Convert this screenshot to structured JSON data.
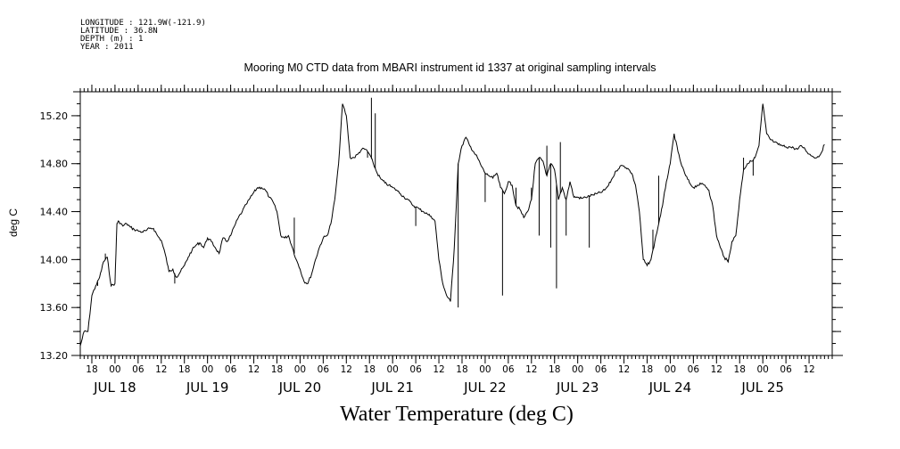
{
  "header": {
    "longitude": "LONGITUDE : 121.9W(-121.9)",
    "latitude": "LATITUDE : 36.8N",
    "depth": "DEPTH (m) : 1",
    "year": "YEAR : 2011"
  },
  "chart_data": {
    "type": "line",
    "title": "Mooring M0 CTD data from MBARI instrument id 1337 at original sampling intervals",
    "xlabel": "Water Temperature (deg C)",
    "ylabel": "deg C",
    "xlim": [
      "2011-07-17T15:00",
      "2011-07-25T18:00"
    ],
    "ylim": [
      13.2,
      15.4
    ],
    "yticks": [
      13.2,
      13.6,
      14.0,
      14.4,
      14.8,
      15.2
    ],
    "ytick_labels": [
      "13.20",
      "13.60",
      "14.00",
      "14.40",
      "14.80",
      "15.20"
    ],
    "xtick_labels": [
      {
        "t": "2011-07-17T18:00",
        "label": "18"
      },
      {
        "t": "2011-07-18T00:00",
        "label": "00"
      },
      {
        "t": "2011-07-18T06:00",
        "label": "06"
      },
      {
        "t": "2011-07-18T12:00",
        "label": "12"
      },
      {
        "t": "2011-07-18T18:00",
        "label": "18"
      },
      {
        "t": "2011-07-19T00:00",
        "label": "00"
      },
      {
        "t": "2011-07-19T06:00",
        "label": "06"
      },
      {
        "t": "2011-07-19T12:00",
        "label": "12"
      },
      {
        "t": "2011-07-19T18:00",
        "label": "18"
      },
      {
        "t": "2011-07-20T00:00",
        "label": "00"
      },
      {
        "t": "2011-07-20T06:00",
        "label": "06"
      },
      {
        "t": "2011-07-20T12:00",
        "label": "12"
      },
      {
        "t": "2011-07-20T18:00",
        "label": "18"
      },
      {
        "t": "2011-07-21T00:00",
        "label": "00"
      },
      {
        "t": "2011-07-21T06:00",
        "label": "06"
      },
      {
        "t": "2011-07-21T12:00",
        "label": "12"
      },
      {
        "t": "2011-07-21T18:00",
        "label": "18"
      },
      {
        "t": "2011-07-22T00:00",
        "label": "00"
      },
      {
        "t": "2011-07-22T06:00",
        "label": "06"
      },
      {
        "t": "2011-07-22T12:00",
        "label": "12"
      },
      {
        "t": "2011-07-22T18:00",
        "label": "18"
      },
      {
        "t": "2011-07-23T00:00",
        "label": "00"
      },
      {
        "t": "2011-07-23T06:00",
        "label": "06"
      },
      {
        "t": "2011-07-23T12:00",
        "label": "12"
      },
      {
        "t": "2011-07-23T18:00",
        "label": "18"
      },
      {
        "t": "2011-07-24T00:00",
        "label": "00"
      },
      {
        "t": "2011-07-24T06:00",
        "label": "06"
      },
      {
        "t": "2011-07-24T12:00",
        "label": "12"
      },
      {
        "t": "2011-07-24T18:00",
        "label": "18"
      },
      {
        "t": "2011-07-25T00:00",
        "label": "00"
      },
      {
        "t": "2011-07-25T06:00",
        "label": "06"
      },
      {
        "t": "2011-07-25T12:00",
        "label": "12"
      }
    ],
    "date_labels": [
      {
        "t": "2011-07-18T00:00",
        "label": "JUL 18"
      },
      {
        "t": "2011-07-19T00:00",
        "label": "JUL 19"
      },
      {
        "t": "2011-07-20T00:00",
        "label": "JUL 20"
      },
      {
        "t": "2011-07-21T00:00",
        "label": "JUL 21"
      },
      {
        "t": "2011-07-22T00:00",
        "label": "JUL 22"
      },
      {
        "t": "2011-07-23T00:00",
        "label": "JUL 23"
      },
      {
        "t": "2011-07-24T00:00",
        "label": "JUL 24"
      },
      {
        "t": "2011-07-25T00:00",
        "label": "JUL 25"
      }
    ],
    "grid": false,
    "series": [
      {
        "x": [
          "2011-07-17T15:00",
          "2011-07-17T16:00",
          "2011-07-17T17:00",
          "2011-07-17T18:00",
          "2011-07-17T19:00",
          "2011-07-17T20:00",
          "2011-07-17T21:00",
          "2011-07-17T22:00",
          "2011-07-17T23:00",
          "2011-07-18T00:00",
          "2011-07-18T00:30",
          "2011-07-18T01:00",
          "2011-07-18T02:00",
          "2011-07-18T03:00",
          "2011-07-18T04:00",
          "2011-07-18T05:00",
          "2011-07-18T06:00",
          "2011-07-18T07:00",
          "2011-07-18T08:00",
          "2011-07-18T09:00",
          "2011-07-18T10:00",
          "2011-07-18T11:00",
          "2011-07-18T12:00",
          "2011-07-18T13:00",
          "2011-07-18T14:00",
          "2011-07-18T15:00",
          "2011-07-18T16:00",
          "2011-07-18T17:00",
          "2011-07-18T18:00",
          "2011-07-18T19:00",
          "2011-07-18T20:00",
          "2011-07-18T21:00",
          "2011-07-18T22:00",
          "2011-07-18T23:00",
          "2011-07-19T00:00",
          "2011-07-19T01:00",
          "2011-07-19T02:00",
          "2011-07-19T03:00",
          "2011-07-19T04:00",
          "2011-07-19T05:00",
          "2011-07-19T06:00",
          "2011-07-19T07:00",
          "2011-07-19T08:00",
          "2011-07-19T09:00",
          "2011-07-19T10:00",
          "2011-07-19T11:00",
          "2011-07-19T12:00",
          "2011-07-19T13:00",
          "2011-07-19T14:00",
          "2011-07-19T15:00",
          "2011-07-19T16:00",
          "2011-07-19T17:00",
          "2011-07-19T18:00",
          "2011-07-19T19:00",
          "2011-07-19T20:00",
          "2011-07-19T21:00",
          "2011-07-19T22:00",
          "2011-07-19T23:00",
          "2011-07-20T00:00",
          "2011-07-20T01:00",
          "2011-07-20T02:00",
          "2011-07-20T03:00",
          "2011-07-20T04:00",
          "2011-07-20T05:00",
          "2011-07-20T06:00",
          "2011-07-20T07:00",
          "2011-07-20T08:00",
          "2011-07-20T09:00",
          "2011-07-20T10:00",
          "2011-07-20T11:00",
          "2011-07-20T12:00",
          "2011-07-20T13:00",
          "2011-07-20T14:00",
          "2011-07-20T15:00",
          "2011-07-20T16:00",
          "2011-07-20T17:00",
          "2011-07-20T18:00",
          "2011-07-20T19:00",
          "2011-07-20T20:00",
          "2011-07-20T21:00",
          "2011-07-20T22:00",
          "2011-07-20T23:00",
          "2011-07-21T00:00",
          "2011-07-21T01:00",
          "2011-07-21T02:00",
          "2011-07-21T03:00",
          "2011-07-21T04:00",
          "2011-07-21T05:00",
          "2011-07-21T06:00",
          "2011-07-21T07:00",
          "2011-07-21T08:00",
          "2011-07-21T09:00",
          "2011-07-21T10:00",
          "2011-07-21T11:00",
          "2011-07-21T12:00",
          "2011-07-21T13:00",
          "2011-07-21T14:00",
          "2011-07-21T15:00",
          "2011-07-21T16:00",
          "2011-07-21T17:00",
          "2011-07-21T18:00",
          "2011-07-21T19:00",
          "2011-07-21T20:00",
          "2011-07-21T21:00",
          "2011-07-21T22:00",
          "2011-07-21T23:00",
          "2011-07-22T00:00",
          "2011-07-22T01:00",
          "2011-07-22T02:00",
          "2011-07-22T03:00",
          "2011-07-22T04:00",
          "2011-07-22T05:00",
          "2011-07-22T06:00",
          "2011-07-22T07:00",
          "2011-07-22T08:00",
          "2011-07-22T09:00",
          "2011-07-22T10:00",
          "2011-07-22T11:00",
          "2011-07-22T12:00",
          "2011-07-22T13:00",
          "2011-07-22T14:00",
          "2011-07-22T15:00",
          "2011-07-22T16:00",
          "2011-07-22T17:00",
          "2011-07-22T18:00",
          "2011-07-22T19:00",
          "2011-07-22T20:00",
          "2011-07-22T21:00",
          "2011-07-22T22:00",
          "2011-07-22T23:00",
          "2011-07-23T00:00",
          "2011-07-23T01:00",
          "2011-07-23T02:00",
          "2011-07-23T03:00",
          "2011-07-23T04:00",
          "2011-07-23T05:00",
          "2011-07-23T06:00",
          "2011-07-23T07:00",
          "2011-07-23T08:00",
          "2011-07-23T09:00",
          "2011-07-23T10:00",
          "2011-07-23T11:00",
          "2011-07-23T12:00",
          "2011-07-23T13:00",
          "2011-07-23T14:00",
          "2011-07-23T15:00",
          "2011-07-23T16:00",
          "2011-07-23T17:00",
          "2011-07-23T18:00",
          "2011-07-23T19:00",
          "2011-07-23T20:00",
          "2011-07-23T21:00",
          "2011-07-23T22:00",
          "2011-07-23T23:00",
          "2011-07-24T00:00",
          "2011-07-24T01:00",
          "2011-07-24T02:00",
          "2011-07-24T03:00",
          "2011-07-24T04:00",
          "2011-07-24T05:00",
          "2011-07-24T06:00",
          "2011-07-24T07:00",
          "2011-07-24T08:00",
          "2011-07-24T09:00",
          "2011-07-24T10:00",
          "2011-07-24T11:00",
          "2011-07-24T12:00",
          "2011-07-24T13:00",
          "2011-07-24T14:00",
          "2011-07-24T15:00",
          "2011-07-24T16:00",
          "2011-07-24T17:00",
          "2011-07-24T18:00",
          "2011-07-24T19:00",
          "2011-07-24T20:00",
          "2011-07-24T21:00",
          "2011-07-24T22:00",
          "2011-07-24T23:00",
          "2011-07-25T00:00",
          "2011-07-25T01:00",
          "2011-07-25T02:00",
          "2011-07-25T03:00",
          "2011-07-25T04:00",
          "2011-07-25T05:00",
          "2011-07-25T06:00",
          "2011-07-25T07:00",
          "2011-07-25T08:00",
          "2011-07-25T09:00",
          "2011-07-25T10:00",
          "2011-07-25T11:00",
          "2011-07-25T12:00",
          "2011-07-25T13:00",
          "2011-07-25T14:00",
          "2011-07-25T15:00",
          "2011-07-25T16:00"
        ],
        "y": [
          13.28,
          13.4,
          13.4,
          13.7,
          13.78,
          13.85,
          13.98,
          14.02,
          13.78,
          13.8,
          14.3,
          14.32,
          14.28,
          14.3,
          14.27,
          14.25,
          14.24,
          14.23,
          14.24,
          14.26,
          14.26,
          14.2,
          14.16,
          14.05,
          13.9,
          13.92,
          13.85,
          13.9,
          13.95,
          14.02,
          14.08,
          14.12,
          14.14,
          14.1,
          14.18,
          14.15,
          14.1,
          14.05,
          14.18,
          14.15,
          14.2,
          14.28,
          14.35,
          14.4,
          14.46,
          14.51,
          14.56,
          14.6,
          14.6,
          14.58,
          14.52,
          14.48,
          14.4,
          14.2,
          14.18,
          14.2,
          14.1,
          14.0,
          13.92,
          13.82,
          13.8,
          13.88,
          14.0,
          14.1,
          14.18,
          14.2,
          14.3,
          14.5,
          14.8,
          15.3,
          15.2,
          14.85,
          14.85,
          14.88,
          14.92,
          14.92,
          14.88,
          14.8,
          14.72,
          14.67,
          14.64,
          14.62,
          14.6,
          14.58,
          14.55,
          14.52,
          14.5,
          14.46,
          14.44,
          14.42,
          14.4,
          14.38,
          14.36,
          14.32,
          14.0,
          13.8,
          13.7,
          13.65,
          14.1,
          14.8,
          14.95,
          15.02,
          14.95,
          14.9,
          14.85,
          14.78,
          14.72,
          14.7,
          14.68,
          14.72,
          14.6,
          14.55,
          14.65,
          14.62,
          14.45,
          14.42,
          14.35,
          14.4,
          14.5,
          14.8,
          14.85,
          14.82,
          14.7,
          14.8,
          14.75,
          14.5,
          14.6,
          14.5,
          14.65,
          14.52,
          14.52,
          14.51,
          14.52,
          14.53,
          14.54,
          14.55,
          14.56,
          14.58,
          14.62,
          14.68,
          14.74,
          14.78,
          14.78,
          14.76,
          14.72,
          14.62,
          14.4,
          14.0,
          13.95,
          14.0,
          14.15,
          14.3,
          14.45,
          14.65,
          14.8,
          15.05,
          14.9,
          14.78,
          14.7,
          14.64,
          14.6,
          14.62,
          14.63,
          14.62,
          14.58,
          14.45,
          14.2,
          14.1,
          14.02,
          13.98,
          14.15,
          14.2,
          14.5,
          14.75,
          14.8,
          14.82,
          14.85,
          14.95,
          15.3,
          15.05,
          15.0,
          14.98,
          14.96,
          14.95,
          14.94,
          14.94,
          14.93,
          14.92,
          14.95,
          14.92,
          14.88,
          14.86,
          14.85,
          14.88,
          14.96
        ],
        "spikes": [
          {
            "t": "2011-07-17T19:30",
            "y": 13.78
          },
          {
            "t": "2011-07-17T21:30",
            "y": 14.05
          },
          {
            "t": "2011-07-18T15:30",
            "y": 13.8
          },
          {
            "t": "2011-07-19T22:30",
            "y": 14.35
          },
          {
            "t": "2011-07-20T17:30",
            "y": 14.85
          },
          {
            "t": "2011-07-20T18:30",
            "y": 15.35
          },
          {
            "t": "2011-07-20T19:30",
            "y": 15.22
          },
          {
            "t": "2011-07-21T06:00",
            "y": 14.28
          },
          {
            "t": "2011-07-21T17:00",
            "y": 13.6
          },
          {
            "t": "2011-07-22T00:00",
            "y": 14.48
          },
          {
            "t": "2011-07-22T04:30",
            "y": 13.7
          },
          {
            "t": "2011-07-22T08:00",
            "y": 14.6
          },
          {
            "t": "2011-07-22T12:00",
            "y": 14.6
          },
          {
            "t": "2011-07-22T14:00",
            "y": 14.2
          },
          {
            "t": "2011-07-22T16:00",
            "y": 14.95
          },
          {
            "t": "2011-07-22T17:00",
            "y": 14.1
          },
          {
            "t": "2011-07-22T18:30",
            "y": 13.76
          },
          {
            "t": "2011-07-22T19:30",
            "y": 14.98
          },
          {
            "t": "2011-07-22T21:00",
            "y": 14.2
          },
          {
            "t": "2011-07-23T03:00",
            "y": 14.1
          },
          {
            "t": "2011-07-23T19:30",
            "y": 14.25
          },
          {
            "t": "2011-07-23T21:00",
            "y": 14.7
          },
          {
            "t": "2011-07-24T15:00",
            "y": 14.0
          },
          {
            "t": "2011-07-24T19:00",
            "y": 14.85
          },
          {
            "t": "2011-07-24T21:30",
            "y": 14.7
          }
        ]
      }
    ]
  }
}
